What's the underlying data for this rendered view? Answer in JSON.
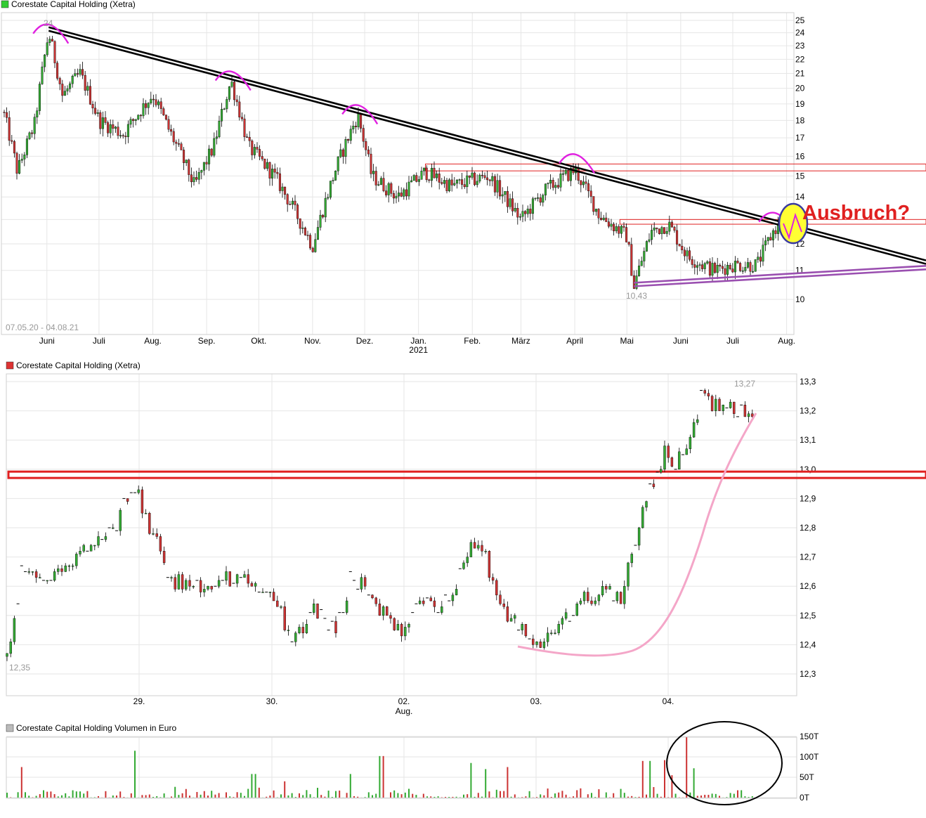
{
  "colors": {
    "up": "#33aa33",
    "down": "#cc3333",
    "grid": "#e6e6e6",
    "trend": "#000000",
    "pink": "#e020e0",
    "purple": "#9a4fb0",
    "redbox": "#e02020",
    "lightpink": "#f4a6c8",
    "yellow": "#ffff33",
    "blue": "#3a3aa0"
  },
  "panels": {
    "top": {
      "legend": "Corestate Capital Holding (Xetra)",
      "legend_color": "#33cc33"
    },
    "middle": {
      "legend": "Corestate Capital Holding (Xetra)",
      "legend_color": "#dd3333"
    },
    "volume": {
      "legend": "Corestate Capital Holding Volumen in Euro",
      "legend_color": "#bbbbbb"
    }
  },
  "annotations": {
    "top_date_range": "07.05.20 - 04.08.21",
    "top_high": "24",
    "top_low": "10,43",
    "breakout": "Ausbruch?",
    "mid_high": "13,27",
    "mid_low": "12,35"
  },
  "chart_data": [
    {
      "type": "candlestick",
      "title": "Corestate Capital Holding (Xetra)",
      "x_range": [
        "07.05.20",
        "04.08.21"
      ],
      "x_ticks": [
        "Juni",
        "Juli",
        "Aug.",
        "Sep.",
        "Okt.",
        "Nov.",
        "Dez.",
        "Jan.",
        "Feb.",
        "März",
        "April",
        "Mai",
        "Juni",
        "Juli",
        "Aug."
      ],
      "x_sub_tick": {
        "under": "Jan.",
        "label": "2021"
      },
      "y_scale": "log",
      "y_ticks": [
        10,
        11,
        12,
        13,
        14,
        15,
        16,
        17,
        18,
        19,
        20,
        21,
        22,
        23,
        24,
        25
      ],
      "grid": true,
      "high": 24,
      "low": 10.43,
      "path": [
        [
          "07.05.20",
          18.5
        ],
        [
          "15.05.20",
          15.2
        ],
        [
          "25.05.20",
          17.8
        ],
        [
          "02.06.20",
          24.0
        ],
        [
          "10.06.20",
          19.5
        ],
        [
          "20.06.20",
          21.0
        ],
        [
          "01.07.20",
          18.0
        ],
        [
          "15.07.20",
          17.2
        ],
        [
          "01.08.20",
          19.6
        ],
        [
          "10.08.20",
          17.5
        ],
        [
          "25.08.20",
          14.5
        ],
        [
          "05.09.20",
          16.5
        ],
        [
          "15.09.20",
          20.5
        ],
        [
          "25.09.20",
          16.5
        ],
        [
          "10.10.20",
          15.0
        ],
        [
          "01.11.20",
          11.9
        ],
        [
          "15.11.20",
          15.5
        ],
        [
          "27.11.20",
          18.3
        ],
        [
          "05.12.20",
          15.0
        ],
        [
          "20.12.20",
          14.0
        ],
        [
          "05.01.21",
          15.2
        ],
        [
          "20.01.21",
          14.5
        ],
        [
          "10.02.21",
          15.0
        ],
        [
          "01.03.21",
          13.0
        ],
        [
          "15.03.21",
          14.3
        ],
        [
          "01.04.21",
          15.3
        ],
        [
          "15.04.21",
          13.2
        ],
        [
          "01.05.21",
          12.3
        ],
        [
          "05.05.21",
          10.43
        ],
        [
          "15.05.21",
          12.5
        ],
        [
          "25.05.21",
          12.8
        ],
        [
          "05.06.21",
          11.5
        ],
        [
          "20.06.21",
          11.0
        ],
        [
          "01.07.21",
          11.2
        ],
        [
          "15.07.21",
          11.2
        ],
        [
          "25.07.21",
          12.6
        ],
        [
          "04.08.21",
          13.0
        ]
      ],
      "trendlines": [
        {
          "from": [
            "02.06.20",
            24.3
          ],
          "to": [
            "04.08.21",
            11.3
          ],
          "style": "double",
          "color": "#000000"
        },
        {
          "from": [
            "05.05.21",
            10.5
          ],
          "to": [
            "04.08.21",
            11.1
          ],
          "style": "double",
          "color": "#9a4fb0"
        }
      ],
      "resistance_bands": [
        {
          "y_range": [
            15.25,
            15.6
          ],
          "from": "05.01.21"
        },
        {
          "y_range": [
            12.8,
            13.0
          ],
          "from": "27.04.21"
        }
      ]
    },
    {
      "type": "candlestick",
      "title": "Corestate Capital Holding (Xetra)",
      "x_ticks": [
        "29.",
        "30.",
        "02.",
        "03.",
        "04."
      ],
      "x_sub_tick": {
        "under": "02.",
        "label": "Aug."
      },
      "y_ticks": [
        "12,3",
        "12,4",
        "12,5",
        "12,6",
        "12,7",
        "12,8",
        "12,9",
        "13,0",
        "13,1",
        "13,2",
        "13,3"
      ],
      "y_range": [
        12.25,
        13.34
      ],
      "grid": true,
      "high": 13.27,
      "low": 12.35,
      "resistance_band": [
        12.96,
        12.98
      ],
      "path": [
        [
          0.0,
          12.36
        ],
        [
          0.02,
          12.65
        ],
        [
          0.06,
          12.62
        ],
        [
          0.1,
          12.72
        ],
        [
          0.14,
          12.78
        ],
        [
          0.17,
          12.95
        ],
        [
          0.19,
          12.8
        ],
        [
          0.22,
          12.62
        ],
        [
          0.26,
          12.6
        ],
        [
          0.3,
          12.63
        ],
        [
          0.33,
          12.61
        ],
        [
          0.36,
          12.55
        ],
        [
          0.38,
          12.41
        ],
        [
          0.41,
          12.52
        ],
        [
          0.44,
          12.46
        ],
        [
          0.46,
          12.63
        ],
        [
          0.48,
          12.6
        ],
        [
          0.51,
          12.47
        ],
        [
          0.53,
          12.43
        ],
        [
          0.55,
          12.56
        ],
        [
          0.58,
          12.53
        ],
        [
          0.6,
          12.61
        ],
        [
          0.62,
          12.76
        ],
        [
          0.64,
          12.7
        ],
        [
          0.66,
          12.52
        ],
        [
          0.69,
          12.45
        ],
        [
          0.71,
          12.39
        ],
        [
          0.73,
          12.43
        ],
        [
          0.75,
          12.5
        ],
        [
          0.77,
          12.55
        ],
        [
          0.8,
          12.6
        ],
        [
          0.82,
          12.55
        ],
        [
          0.85,
          12.88
        ],
        [
          0.87,
          12.98
        ],
        [
          0.88,
          13.1
        ],
        [
          0.89,
          13.02
        ],
        [
          0.91,
          13.05
        ],
        [
          0.92,
          13.15
        ],
        [
          0.93,
          13.27
        ],
        [
          0.95,
          13.2
        ]
      ]
    },
    {
      "type": "bar",
      "title": "Corestate Capital Holding Volumen in Euro",
      "y_ticks": [
        "0T",
        "50T",
        "100T",
        "150T"
      ],
      "y_range": [
        0,
        150
      ],
      "unit": "T (thousand EUR)",
      "peaks": [
        {
          "pos": 0.02,
          "value": 75
        },
        {
          "pos": 0.17,
          "value": 115
        },
        {
          "pos": 0.33,
          "value": 58
        },
        {
          "pos": 0.37,
          "value": 40
        },
        {
          "pos": 0.46,
          "value": 58
        },
        {
          "pos": 0.5,
          "value": 102
        },
        {
          "pos": 0.62,
          "value": 85
        },
        {
          "pos": 0.64,
          "value": 70
        },
        {
          "pos": 0.67,
          "value": 75
        },
        {
          "pos": 0.85,
          "value": 90
        },
        {
          "pos": 0.86,
          "value": 90
        },
        {
          "pos": 0.88,
          "value": 92
        },
        {
          "pos": 0.89,
          "value": 55
        },
        {
          "pos": 0.91,
          "value": 148
        },
        {
          "pos": 0.92,
          "value": 72
        }
      ]
    }
  ]
}
